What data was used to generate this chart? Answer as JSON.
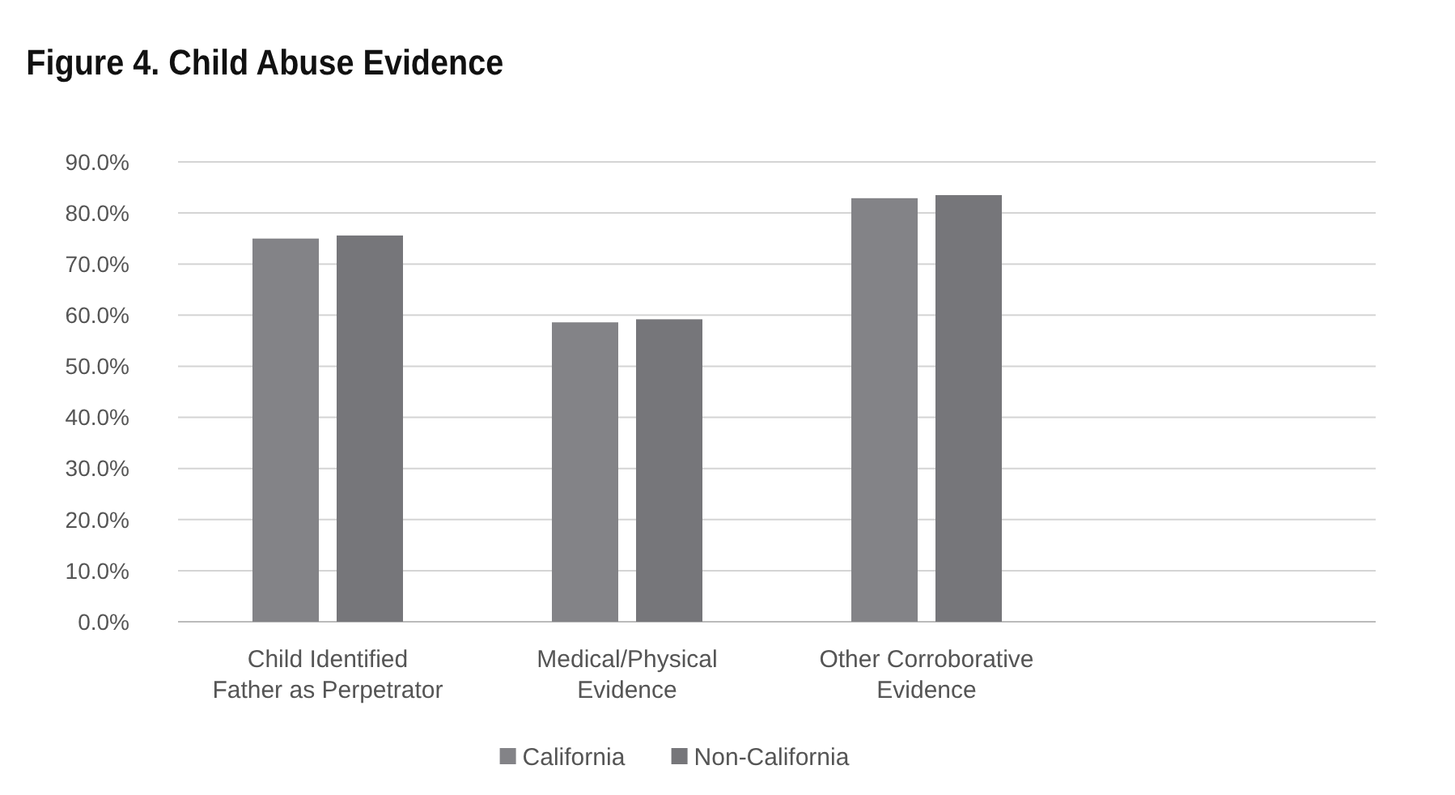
{
  "chart_data": {
    "type": "bar",
    "title": "Figure 4.  Child Abuse Evidence",
    "categories": [
      "Child Identified\nFather as Perpetrator",
      "Medical/Physical\nEvidence",
      "Other Corroborative\nEvidence",
      null
    ],
    "series": [
      {
        "name": "California",
        "color": "#838387",
        "values": [
          75.0,
          58.6,
          82.9,
          null
        ]
      },
      {
        "name": "Non-California",
        "color": "#76767a",
        "values": [
          75.6,
          59.2,
          83.5,
          null
        ]
      }
    ],
    "ylim": [
      0,
      90
    ],
    "yticks": [
      {
        "value": 0,
        "label": "0.0%"
      },
      {
        "value": 10,
        "label": "10.0%"
      },
      {
        "value": 20,
        "label": "20.0%"
      },
      {
        "value": 30,
        "label": "30.0%"
      },
      {
        "value": 40,
        "label": "40.0%"
      },
      {
        "value": 50,
        "label": "50.0%"
      },
      {
        "value": 60,
        "label": "60.0%"
      },
      {
        "value": 70,
        "label": "70.0%"
      },
      {
        "value": 80,
        "label": "80.0%"
      },
      {
        "value": 90,
        "label": "90.0%"
      }
    ],
    "grid": "y",
    "legend": "bottom"
  }
}
